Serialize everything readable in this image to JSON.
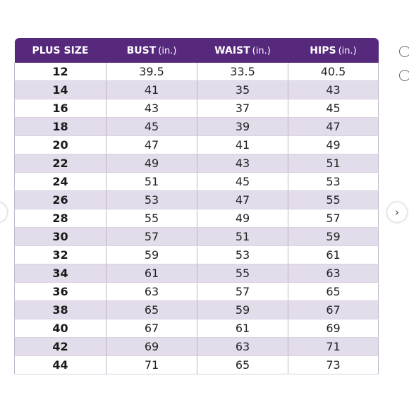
{
  "colors": {
    "header_bg": "#56297c",
    "stripe": "#e3dcea"
  },
  "table": {
    "headers": [
      {
        "label": "PLUS SIZE",
        "unit": ""
      },
      {
        "label": "BUST",
        "unit": "(in.)"
      },
      {
        "label": "WAIST",
        "unit": "(in.)"
      },
      {
        "label": "HIPS",
        "unit": "(in.)"
      }
    ],
    "rows": [
      [
        "12",
        "39.5",
        "33.5",
        "40.5"
      ],
      [
        "14",
        "41",
        "35",
        "43"
      ],
      [
        "16",
        "43",
        "37",
        "45"
      ],
      [
        "18",
        "45",
        "39",
        "47"
      ],
      [
        "20",
        "47",
        "41",
        "49"
      ],
      [
        "22",
        "49",
        "43",
        "51"
      ],
      [
        "24",
        "51",
        "45",
        "53"
      ],
      [
        "26",
        "53",
        "47",
        "55"
      ],
      [
        "28",
        "55",
        "49",
        "57"
      ],
      [
        "30",
        "57",
        "51",
        "59"
      ],
      [
        "32",
        "59",
        "53",
        "61"
      ],
      [
        "34",
        "61",
        "55",
        "63"
      ],
      [
        "36",
        "63",
        "57",
        "65"
      ],
      [
        "38",
        "65",
        "59",
        "67"
      ],
      [
        "40",
        "67",
        "61",
        "69"
      ],
      [
        "42",
        "69",
        "63",
        "71"
      ],
      [
        "44",
        "71",
        "65",
        "73"
      ]
    ]
  },
  "nav": {
    "next_glyph": "›",
    "prev_glyph": "‹",
    "next_icon": "chevron-right-icon",
    "prev_icon": "chevron-left-icon"
  }
}
